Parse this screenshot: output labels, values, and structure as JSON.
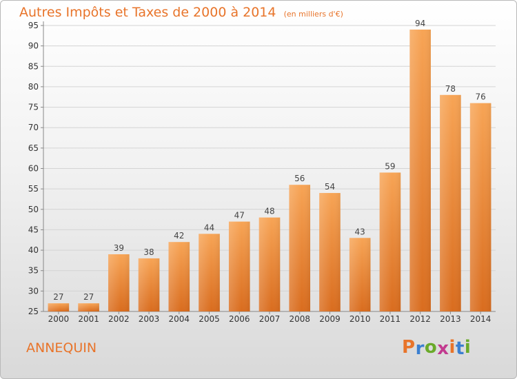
{
  "chart_data": {
    "type": "bar",
    "title": "Autres Impôts et Taxes de 2000 à 2014",
    "subtitle": "(en milliers d'€)",
    "categories": [
      "2000",
      "2001",
      "2002",
      "2003",
      "2004",
      "2005",
      "2006",
      "2007",
      "2008",
      "2009",
      "2010",
      "2011",
      "2012",
      "2013",
      "2014"
    ],
    "values": [
      27,
      27,
      39,
      38,
      42,
      44,
      47,
      48,
      56,
      54,
      43,
      59,
      94,
      78,
      76
    ],
    "ylim": [
      25,
      95
    ],
    "yticks": [
      25,
      30,
      35,
      40,
      45,
      50,
      55,
      60,
      65,
      70,
      75,
      80,
      85,
      90,
      95
    ],
    "grid": true,
    "bar_color": "#f0913a"
  },
  "footer": {
    "commune": "ANNEQUIN",
    "logo": "Proxiti"
  },
  "colors": {
    "accent": "#e8742a",
    "logo_letters": [
      "#e8742a",
      "#3b7fd0",
      "#6aaa2a",
      "#c23a8f",
      "#e8742a",
      "#3b7fd0",
      "#6aaa2a"
    ]
  }
}
